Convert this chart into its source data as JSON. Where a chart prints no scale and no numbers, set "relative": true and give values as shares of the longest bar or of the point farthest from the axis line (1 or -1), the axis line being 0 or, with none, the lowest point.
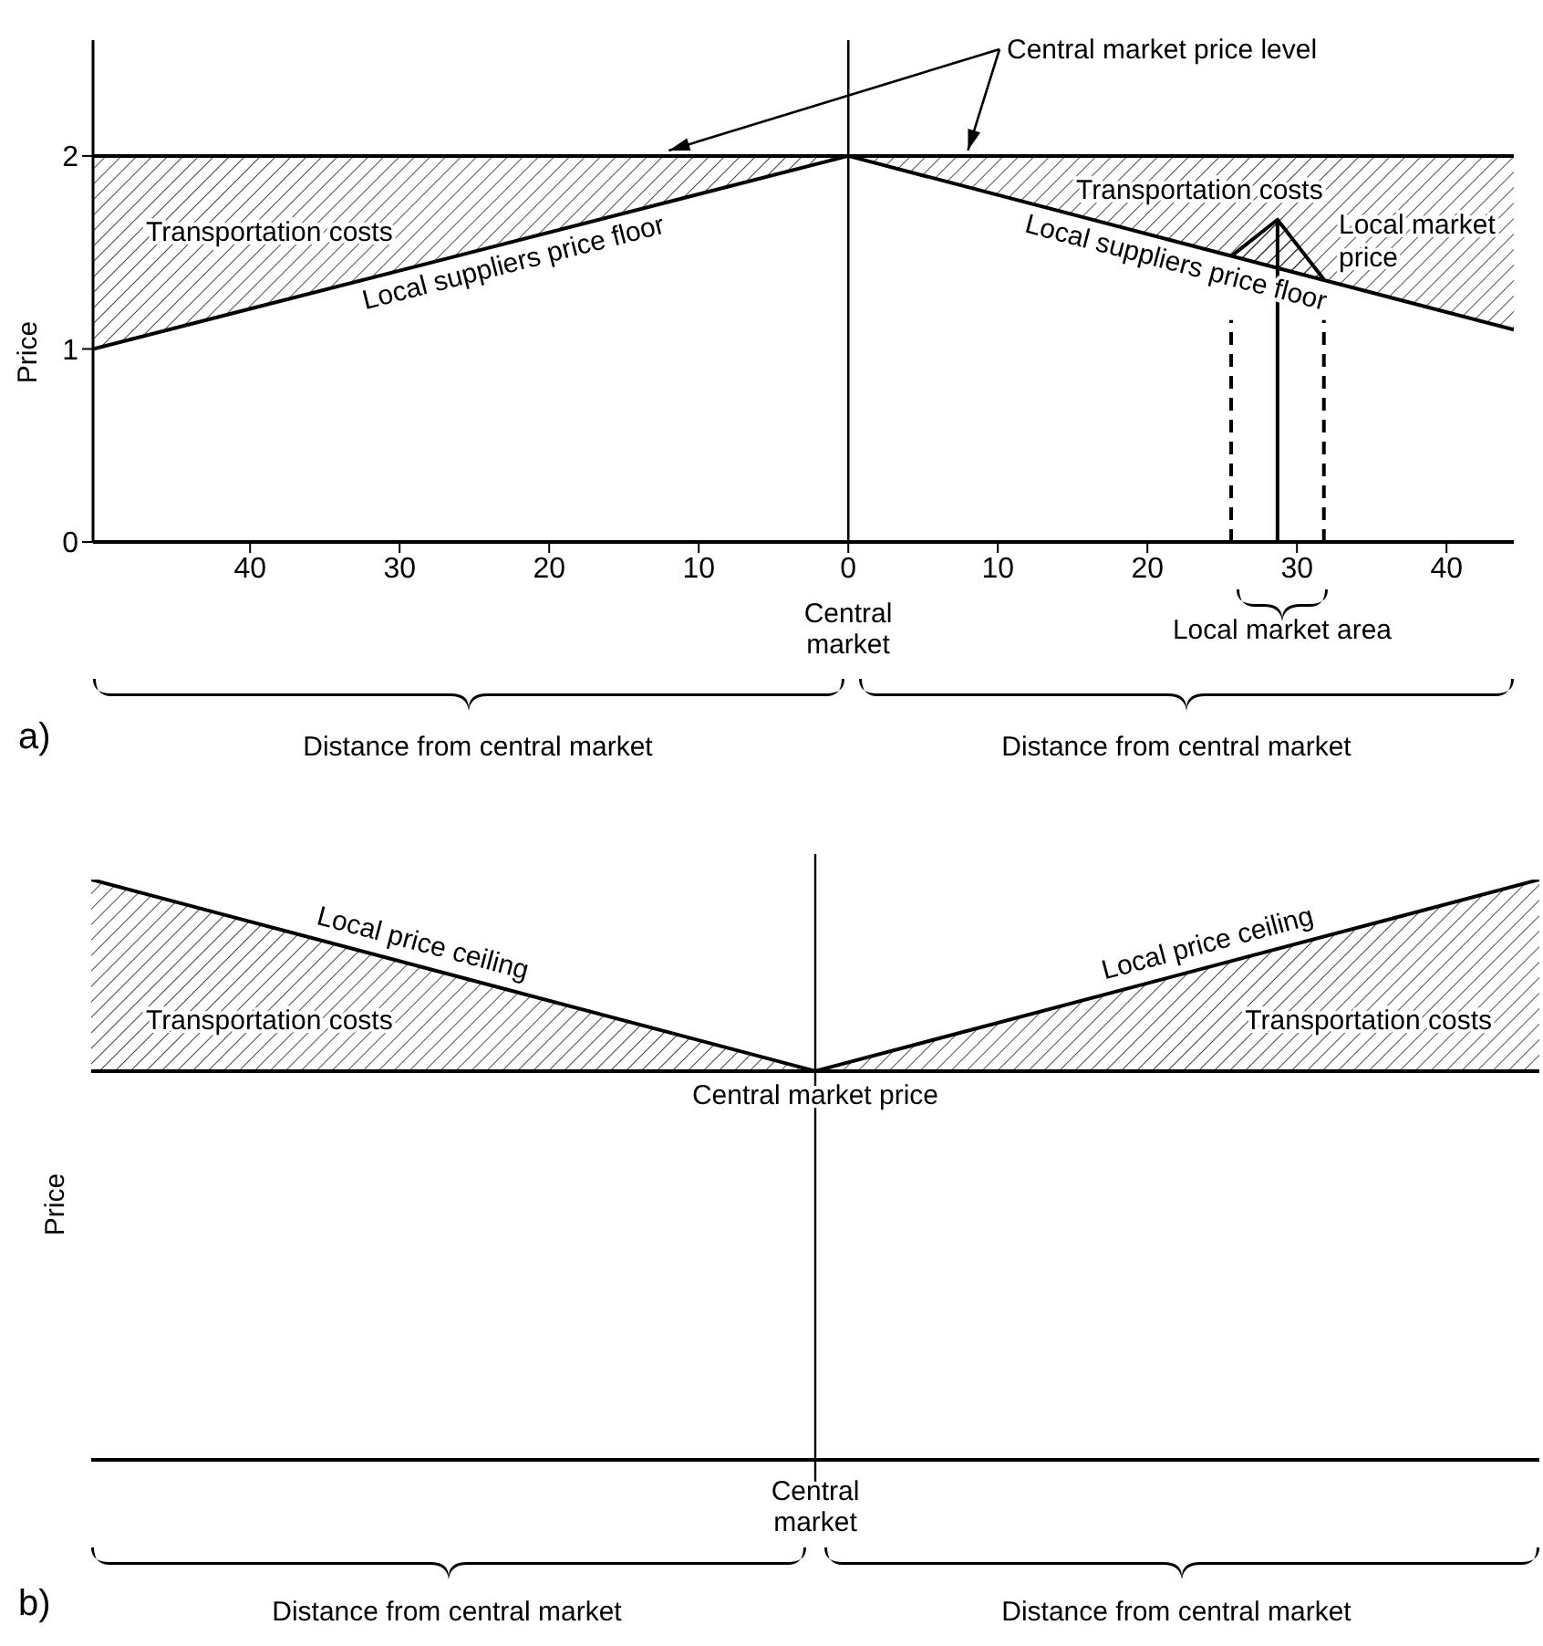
{
  "chart_data": [
    {
      "type": "line",
      "xlabel": "Distance from central market",
      "ylabel": "Price",
      "xlim": [
        -50.5,
        44.5
      ],
      "ylim": [
        0,
        2.6
      ],
      "xticks": [
        {
          "value": -40,
          "label": "40"
        },
        {
          "value": -30,
          "label": "30"
        },
        {
          "value": -20,
          "label": "20"
        },
        {
          "value": -10,
          "label": "10"
        },
        0,
        10,
        20,
        30,
        40
      ],
      "yticks": [
        0,
        1,
        2
      ],
      "ref_lines": [
        {
          "axis": "x",
          "value": 0,
          "color": "#000000"
        }
      ],
      "annotations": [
        {
          "text": "Central market price level",
          "x": -12,
          "y": 2
        },
        "Transportation costs",
        "Transportation costs",
        "Central market",
        "Local market area",
        "Distance from central market",
        "a)"
      ],
      "series": [
        {
          "color": "#000000",
          "x": [
            -50.5,
            44.5
          ],
          "values": [
            2,
            2
          ]
        },
        {
          "name": "Local suppliers price floor",
          "color": "#000000",
          "x": [
            -50.5,
            0
          ],
          "values": [
            1,
            2
          ],
          "lower": [
            1,
            2
          ],
          "upper": [
            2,
            2
          ]
        },
        {
          "name": "Local suppliers price floor",
          "color": "#000000",
          "x": [
            0,
            44.5
          ],
          "values": [
            2,
            1.1
          ],
          "lower": [
            2,
            1.1
          ],
          "upper": [
            2,
            2
          ]
        },
        {
          "name": "Local market price",
          "color": "#000000",
          "x": [
            25.6,
            28.7,
            31.8
          ],
          "values": [
            1.48,
            1.67,
            1.36
          ],
          "lower": [
            1.48,
            1.42,
            1.36
          ],
          "upper": [
            1.48,
            1.67,
            1.36
          ]
        },
        {
          "color": "#000000",
          "x": [
            25.6,
            25.6
          ],
          "values": [
            0,
            1.15
          ],
          "line_style": "dashed"
        },
        {
          "color": "#000000",
          "x": [
            28.7,
            28.7
          ],
          "values": [
            0,
            1.67
          ]
        },
        {
          "color": "#000000",
          "x": [
            31.8,
            31.8
          ],
          "values": [
            0,
            1.15
          ],
          "line_style": "dashed"
        }
      ]
    },
    {
      "type": "line",
      "relative": true,
      "categories": [
        null,
        null,
        null
      ],
      "xlabel": "Distance from central market",
      "ylabel": "Price",
      "annotations": [
        "Transportation costs",
        "Transportation costs",
        "Central market",
        "Distance from central market",
        "b)"
      ],
      "series": [
        {
          "name": "Central market price",
          "color": "#000000",
          "values": [
            0.67,
            0.67,
            0.67
          ]
        },
        {
          "name": "Local price ceiling",
          "color": "#000000",
          "values": [
            1,
            0.67,
            null
          ],
          "lower": [
            0.67,
            0.67,
            null
          ],
          "upper": [
            1,
            0.67,
            null
          ]
        },
        {
          "name": "Local price ceiling",
          "color": "#000000",
          "values": [
            null,
            0.67,
            1
          ],
          "lower": [
            null,
            0.67,
            0.67
          ],
          "upper": [
            null,
            0.67,
            1
          ]
        }
      ]
    }
  ]
}
